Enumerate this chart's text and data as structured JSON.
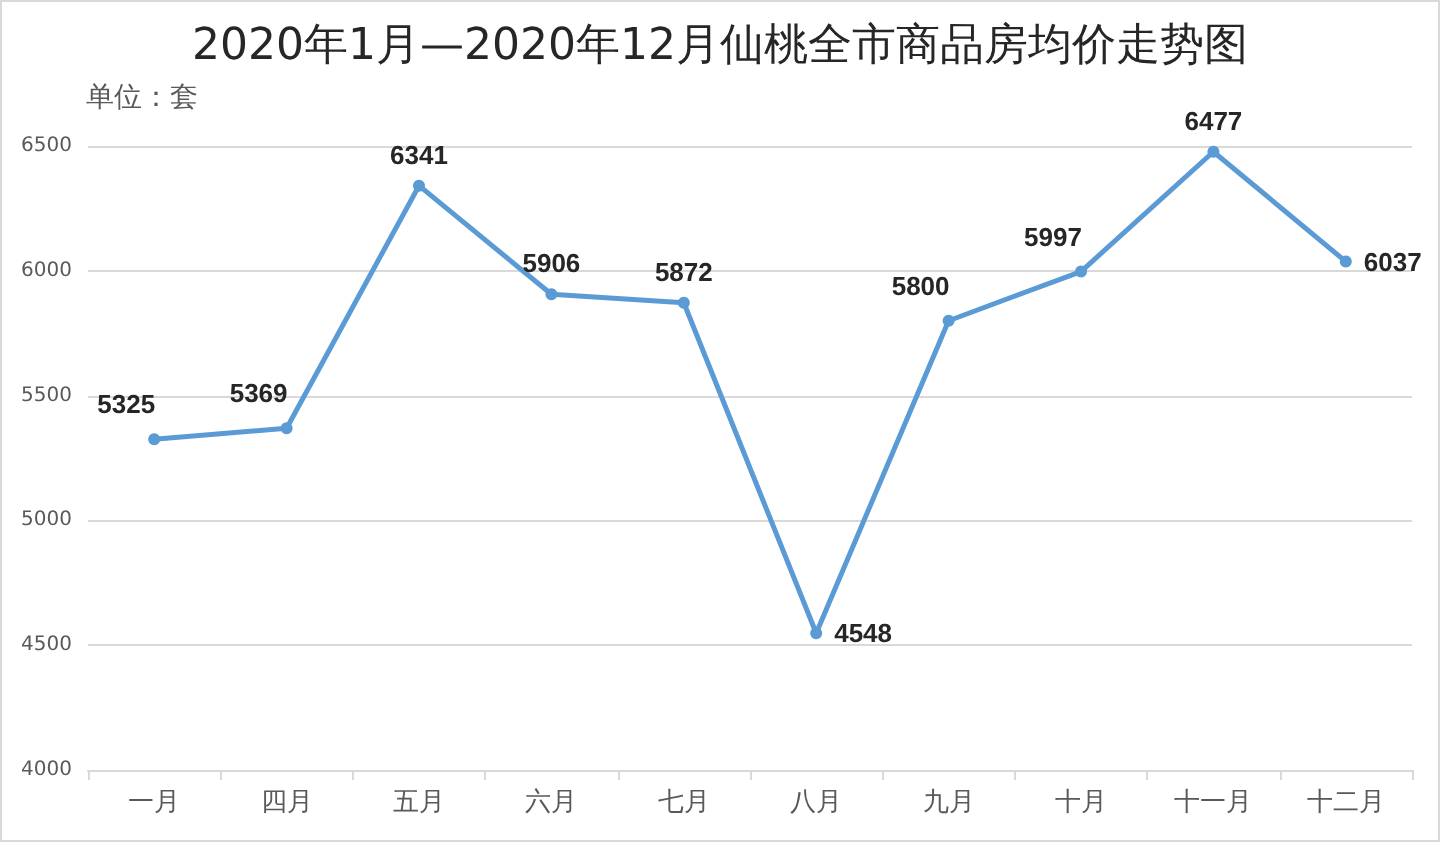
{
  "chart_data": {
    "type": "line",
    "title": "2020年1月—2020年12月仙桃全市商品房均价走势图",
    "annotations": [
      "单位：套"
    ],
    "categories": [
      "一月",
      "四月",
      "五月",
      "六月",
      "七月",
      "八月",
      "九月",
      "十月",
      "十一月",
      "十二月"
    ],
    "series": [
      {
        "color": "#5b9bd5",
        "values": [
          5325,
          5369,
          6341,
          5906,
          5872,
          4548,
          5800,
          5997,
          6477,
          6037
        ]
      }
    ],
    "ylim": [
      4000,
      6500
    ],
    "yticks": [
      4000,
      4500,
      5000,
      5500,
      6000,
      6500
    ],
    "grid": "y",
    "marker": "circle",
    "line_style": "solid",
    "data_labels": true
  }
}
